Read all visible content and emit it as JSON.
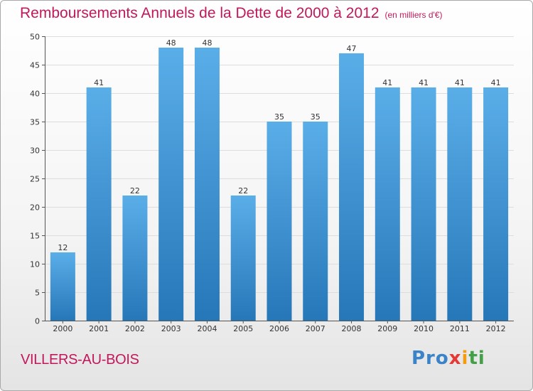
{
  "title": "Remboursements Annuels de la Dette de 2000 à 2012",
  "subtitle": "(en milliers d'€)",
  "city": "VILLERS-AU-BOIS",
  "logo": {
    "parts": [
      "Pro",
      "x",
      "i",
      "ti"
    ]
  },
  "colors": {
    "title": "#c2185b",
    "bar_top": "#5aaee8",
    "bar_bottom": "#2677b8",
    "grid": "#dddddd"
  },
  "chart_data": {
    "type": "bar",
    "title": "Remboursements Annuels de la Dette de 2000 à 2012",
    "subtitle": "(en milliers d'€)",
    "xlabel": "",
    "ylabel": "",
    "categories": [
      "2000",
      "2001",
      "2002",
      "2003",
      "2004",
      "2005",
      "2006",
      "2007",
      "2008",
      "2009",
      "2010",
      "2011",
      "2012"
    ],
    "values": [
      12,
      41,
      22,
      48,
      48,
      22,
      35,
      35,
      47,
      41,
      41,
      41,
      41
    ],
    "ylim": [
      0,
      50
    ],
    "yticks": [
      0,
      5,
      10,
      15,
      20,
      25,
      30,
      35,
      40,
      45,
      50
    ],
    "grid": true,
    "data_labels": true
  }
}
